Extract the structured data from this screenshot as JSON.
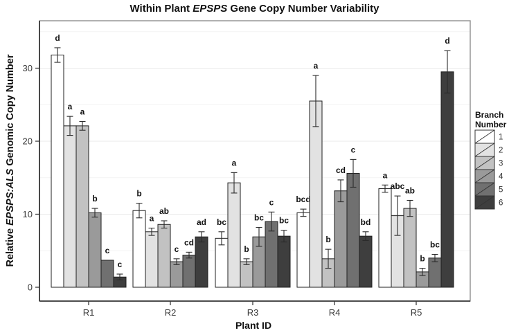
{
  "title": {
    "pre": "Within Plant ",
    "italic": "EPSPS",
    "post": " Gene Copy Number Variability"
  },
  "axes": {
    "y_pre": "Relative ",
    "y_italic": "EPSPS:ALS",
    "y_post": " Genomic Copy Number",
    "x_label": "Plant ID",
    "y_tick_labels": [
      "0",
      "10",
      "20",
      "30"
    ]
  },
  "legend": {
    "title_lines": [
      "Branch",
      "Number"
    ],
    "labels": [
      "1",
      "2",
      "3",
      "4",
      "5",
      "6"
    ]
  },
  "chart_data": {
    "type": "bar",
    "title": "Within Plant EPSPS Gene Copy Number Variability",
    "xlabel": "Plant ID",
    "ylabel": "Relative EPSPS:ALS Genomic Copy Number",
    "categories": [
      "R1",
      "R2",
      "R3",
      "R4",
      "R5"
    ],
    "yticks": [
      0,
      10,
      20,
      30
    ],
    "ylim": [
      0,
      36.5
    ],
    "grid": "faint horizontal majors at 10/20/30, minors at 5/15/25/35",
    "legend_title": "Branch Number",
    "legend_position": "right",
    "bar_outline_color": "#1f1f1f",
    "error_bar_color": "#2b2b2b",
    "series": [
      {
        "name": "1",
        "fill": "#ffffff",
        "values": [
          31.8,
          10.5,
          6.7,
          10.2,
          13.5
        ],
        "errors": [
          1.0,
          1.0,
          0.9,
          0.5,
          0.5
        ],
        "sig_letters": [
          "d",
          "b",
          "bc",
          "bcd",
          "a"
        ]
      },
      {
        "name": "2",
        "fill": "#e2e2e2",
        "values": [
          22.1,
          7.6,
          14.3,
          25.5,
          9.8
        ],
        "errors": [
          1.3,
          0.5,
          1.4,
          3.5,
          2.7
        ],
        "sig_letters": [
          "a",
          "a",
          "a",
          "a",
          "abc"
        ]
      },
      {
        "name": "3",
        "fill": "#c2c2c2",
        "values": [
          22.1,
          8.6,
          3.5,
          3.9,
          10.8
        ],
        "errors": [
          0.6,
          0.5,
          0.4,
          1.3,
          1.1
        ],
        "sig_letters": [
          "a",
          "ab",
          "b",
          "b",
          "ab"
        ]
      },
      {
        "name": "4",
        "fill": "#9a9a9a",
        "values": [
          10.2,
          3.5,
          6.9,
          13.2,
          2.1
        ],
        "errors": [
          0.6,
          0.4,
          1.3,
          1.5,
          0.5
        ],
        "sig_letters": [
          "b",
          "c",
          "bc",
          "cd",
          "b"
        ]
      },
      {
        "name": "5",
        "fill": "#707070",
        "values": [
          3.7,
          4.4,
          9.0,
          15.6,
          4.0
        ],
        "errors": [
          0,
          0.4,
          1.3,
          1.9,
          0.5
        ],
        "sig_letters": [
          "c",
          "cd",
          "c",
          "c",
          "bc"
        ]
      },
      {
        "name": "6",
        "fill": "#3e3e3e",
        "values": [
          1.4,
          6.9,
          7.0,
          7.0,
          29.5
        ],
        "errors": [
          0.4,
          0.7,
          0.8,
          0.6,
          2.9
        ],
        "sig_letters": [
          "c",
          "ad",
          "bc",
          "bd",
          "d"
        ]
      }
    ]
  }
}
